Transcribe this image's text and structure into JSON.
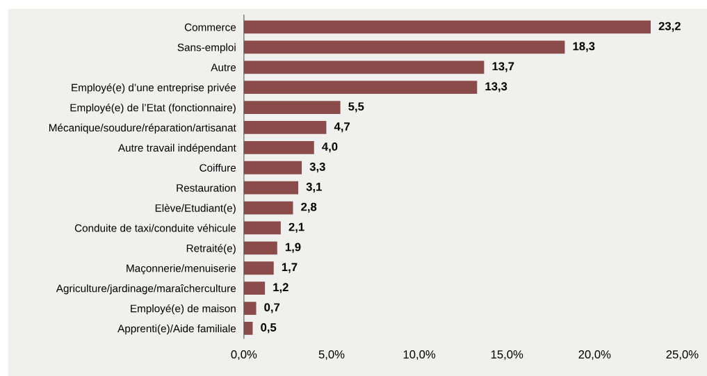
{
  "chart_data": {
    "type": "bar",
    "orientation": "horizontal",
    "categories": [
      "Commerce",
      "Sans-emploi",
      "Autre",
      "Employé(e) d’une entreprise privée",
      "Employé(e) de l’Etat (fonctionnaire)",
      "Mécanique/soudure/réparation/artisanat",
      "Autre travail indépendant",
      "Coiffure",
      "Restauration",
      "Elève/Etudiant(e)",
      "Conduite de taxi/conduite véhicule",
      "Retraité(e)",
      "Maçonnerie/menuiserie",
      "Agriculture/jardinage/maraîcherculture",
      "Employé(e) de maison",
      "Apprenti(e)/Aide familiale"
    ],
    "values": [
      23.2,
      18.3,
      13.7,
      13.3,
      5.5,
      4.7,
      4.0,
      3.3,
      3.1,
      2.8,
      2.1,
      1.9,
      1.7,
      1.2,
      0.7,
      0.5
    ],
    "value_labels": [
      "23,2",
      "18,3",
      "13,7",
      "13,3",
      "5,5",
      "4,7",
      "4,0",
      "3,3",
      "3,1",
      "2,8",
      "2,1",
      "1,9",
      "1,7",
      "1,2",
      "0,7",
      "0,5"
    ],
    "color": "#8c4b4b",
    "xlim": [
      0,
      25
    ],
    "xticks": [
      {
        "value": 0,
        "label": "0,0%"
      },
      {
        "value": 5,
        "label": "5,0%"
      },
      {
        "value": 10,
        "label": "10,0%"
      },
      {
        "value": 15,
        "label": "15,0%"
      },
      {
        "value": 20,
        "label": "20,0%"
      },
      {
        "value": 25,
        "label": "25,0%"
      }
    ],
    "grid": false,
    "legend": false
  }
}
